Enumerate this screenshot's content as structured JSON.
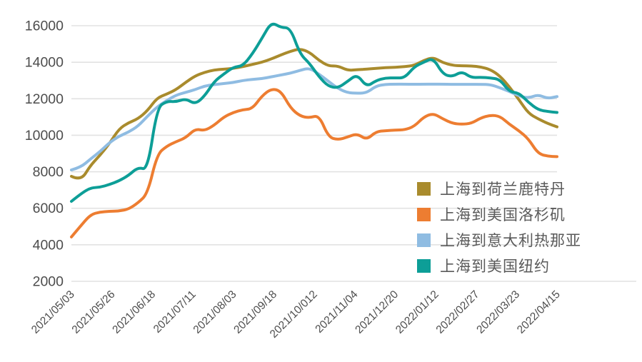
{
  "chart_data": {
    "type": "line",
    "title": "",
    "xlabel": "",
    "ylabel": "",
    "ylim": [
      2000,
      16000
    ],
    "y_ticks": [
      2000,
      4000,
      6000,
      8000,
      10000,
      12000,
      14000,
      16000
    ],
    "grid": true,
    "legend_position": "inside-right-bottom",
    "x_tick_labels": [
      "2021/05/03",
      "2021/05/26",
      "2021/06/18",
      "2021/07/11",
      "2021/08/03",
      "2021/09/18",
      "2021/10/012",
      "2021/11/04",
      "2021/12/20",
      "2022/01/12",
      "2022/02/27",
      "2022/03/23",
      "2022/04/15"
    ],
    "series": [
      {
        "name": "上海到荷兰鹿特丹",
        "color": "#a98b2d",
        "values": [
          7750,
          7500,
          8350,
          8900,
          9550,
          10350,
          10690,
          10900,
          11350,
          12050,
          12250,
          12500,
          12900,
          13250,
          13450,
          13580,
          13620,
          13660,
          13760,
          13880,
          14000,
          14180,
          14400,
          14600,
          14740,
          14550,
          14100,
          13790,
          13800,
          13550,
          13590,
          13620,
          13670,
          13700,
          13720,
          13760,
          13820,
          14100,
          14270,
          13980,
          13830,
          13800,
          13800,
          13740,
          13600,
          13250,
          12650,
          11950,
          11200,
          10900,
          10650,
          10460
        ]
      },
      {
        "name": "上海到美国洛杉矶",
        "color": "#ed7d31",
        "values": [
          4430,
          5050,
          5650,
          5800,
          5830,
          5850,
          5950,
          6300,
          6800,
          8950,
          9400,
          9650,
          9860,
          10350,
          10250,
          10550,
          11000,
          11250,
          11400,
          11450,
          12150,
          12550,
          12430,
          11500,
          11050,
          10950,
          11100,
          9900,
          9750,
          9900,
          10090,
          9750,
          10200,
          10250,
          10280,
          10300,
          10480,
          11000,
          11200,
          10900,
          10650,
          10600,
          10650,
          10950,
          11100,
          11050,
          10600,
          10250,
          9800,
          9000,
          8850,
          8830
        ]
      },
      {
        "name": "上海到意大利热那亚",
        "color": "#8fbce2",
        "values": [
          8100,
          8250,
          8700,
          9100,
          9600,
          9950,
          10170,
          10500,
          11050,
          11550,
          11900,
          12200,
          12350,
          12500,
          12700,
          12780,
          12830,
          12890,
          13000,
          13060,
          13100,
          13200,
          13300,
          13400,
          13550,
          13690,
          13350,
          12950,
          12560,
          12330,
          12300,
          12320,
          12700,
          12790,
          12800,
          12800,
          12790,
          12800,
          12800,
          12800,
          12790,
          12790,
          12790,
          12790,
          12780,
          12600,
          12400,
          12150,
          12030,
          12230,
          12010,
          12120
        ]
      },
      {
        "name": "上海到美国纽约",
        "color": "#0d9e97",
        "values": [
          6380,
          6800,
          7120,
          7150,
          7300,
          7500,
          7800,
          8250,
          8100,
          11500,
          11870,
          11830,
          12000,
          11700,
          12150,
          12950,
          13350,
          13730,
          13800,
          14450,
          15300,
          16200,
          15900,
          15880,
          14450,
          13950,
          13200,
          12670,
          12590,
          12950,
          13340,
          12650,
          13000,
          13140,
          13140,
          13140,
          13750,
          14000,
          14230,
          13350,
          13200,
          13500,
          13150,
          13180,
          13140,
          13060,
          12380,
          12320,
          11800,
          11400,
          11300,
          11250
        ]
      }
    ],
    "style": {
      "grid_color": "#e2e2e2",
      "axis_text_color": "#4d4d4d",
      "background": "#ffffff"
    }
  }
}
